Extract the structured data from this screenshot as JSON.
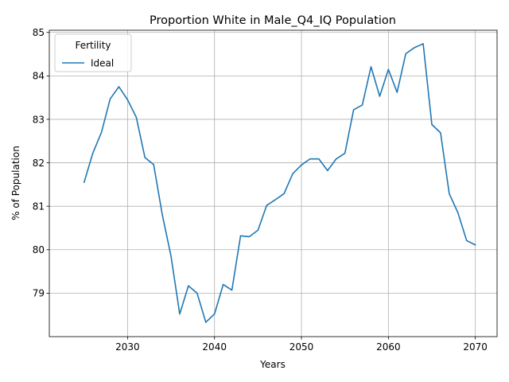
{
  "chart_data": {
    "type": "line",
    "title": "Proportion White in Male_Q4_IQ Population",
    "xlabel": "Years",
    "ylabel": "% of Population",
    "xlim": [
      2021,
      2072.5
    ],
    "ylim": [
      78.0,
      85.05
    ],
    "xticks": [
      2030,
      2040,
      2050,
      2060,
      2070
    ],
    "yticks": [
      79,
      80,
      81,
      82,
      83,
      84,
      85
    ],
    "grid": true,
    "legend": {
      "title": "Fertility",
      "position": "top-left"
    },
    "series": [
      {
        "name": "Ideal",
        "color": "#1f77b4",
        "x": [
          2025,
          2026,
          2027,
          2028,
          2029,
          2030,
          2031,
          2032,
          2033,
          2034,
          2035,
          2036,
          2037,
          2038,
          2039,
          2040,
          2041,
          2042,
          2043,
          2044,
          2045,
          2046,
          2047,
          2048,
          2049,
          2050,
          2051,
          2052,
          2053,
          2054,
          2055,
          2056,
          2057,
          2058,
          2059,
          2060,
          2061,
          2062,
          2063,
          2064,
          2065,
          2066,
          2067,
          2068,
          2069,
          2070
        ],
        "y": [
          81.55,
          82.22,
          82.7,
          83.47,
          83.75,
          83.45,
          83.05,
          82.12,
          81.96,
          80.8,
          79.85,
          78.52,
          79.17,
          79.0,
          78.33,
          78.52,
          79.2,
          79.07,
          80.32,
          80.3,
          80.45,
          81.02,
          81.15,
          81.29,
          81.75,
          81.95,
          82.09,
          82.09,
          81.82,
          82.09,
          82.22,
          83.22,
          83.33,
          84.21,
          83.53,
          84.15,
          83.62,
          84.51,
          84.65,
          84.74,
          82.88,
          82.69,
          81.29,
          80.85,
          80.21,
          80.11
        ]
      }
    ]
  }
}
